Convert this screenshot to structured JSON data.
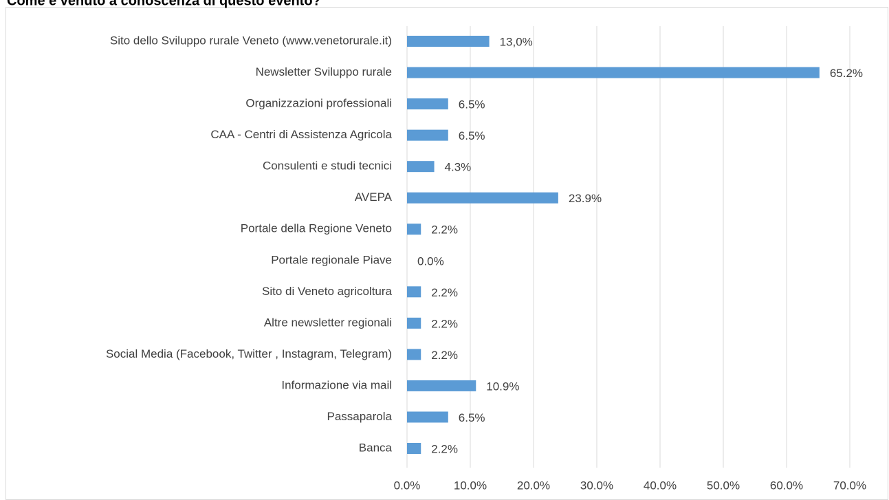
{
  "chart_data": {
    "type": "bar",
    "orientation": "horizontal",
    "title": "Come è venuto a conoscenza di questo evento?",
    "categories": [
      "Sito dello Sviluppo rurale Veneto (www.venetorurale.it)",
      "Newsletter Sviluppo rurale",
      "Organizzazioni professionali",
      "CAA - Centri di Assistenza Agricola",
      "Consulenti e studi tecnici",
      "AVEPA",
      "Portale della Regione Veneto",
      "Portale regionale Piave",
      "Sito di Veneto agricoltura",
      "Altre newsletter regionali",
      "Social Media (Facebook, Twitter , Instagram, Telegram)",
      "Informazione via mail",
      "Passaparola",
      "Banca"
    ],
    "values": [
      13.0,
      65.2,
      6.5,
      6.5,
      4.3,
      23.9,
      2.2,
      0.0,
      2.2,
      2.2,
      2.2,
      10.9,
      6.5,
      2.2
    ],
    "value_labels": [
      "13,0%",
      "65.2%",
      "6.5%",
      "6.5%",
      "4.3%",
      "23.9%",
      "2.2%",
      "0.0%",
      "2.2%",
      "2.2%",
      "2.2%",
      "10.9%",
      "6.5%",
      "2.2%"
    ],
    "color": "#5b9bd5",
    "xlim": [
      0,
      70
    ],
    "xticks": [
      {
        "value": 0,
        "label": "0.0%"
      },
      {
        "value": 10,
        "label": "10.0%"
      },
      {
        "value": 20,
        "label": "20.0%"
      },
      {
        "value": 30,
        "label": "30.0%"
      },
      {
        "value": 40,
        "label": "40.0%"
      },
      {
        "value": 50,
        "label": "50.0%"
      },
      {
        "value": 60,
        "label": "60.0%"
      },
      {
        "value": 70,
        "label": "70.0%"
      }
    ],
    "grid": true
  }
}
